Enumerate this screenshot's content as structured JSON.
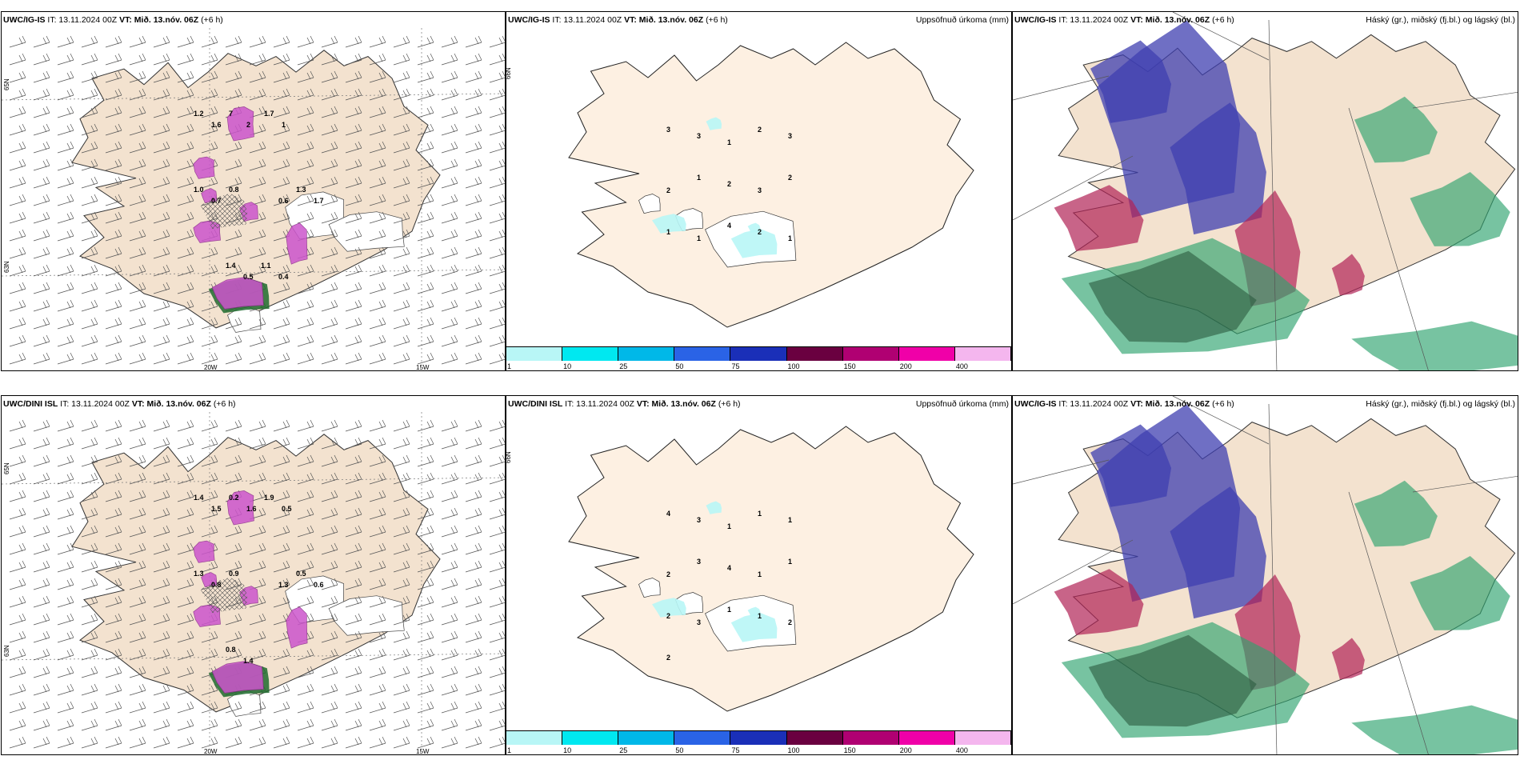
{
  "rows": [
    {
      "model_left": "UWC/IG-IS",
      "model_mid": "UWC/IG-IS",
      "model_right": "UWC/IG-IS",
      "it": "IT: 13.11.2024 00Z",
      "vt": "VT: Mið. 13.nóv. 06Z",
      "lead": "(+6 h)",
      "precip_labels": [
        "3",
        "3",
        "1",
        "2",
        "3",
        "2",
        "1",
        "2",
        "3",
        "2",
        "1",
        "1",
        "4",
        "2",
        "1"
      ],
      "wind_labels": [
        "1.2",
        "1.6",
        "7",
        "2",
        "1.7",
        "1",
        "1.0",
        "0.7",
        "0.8",
        "0.6",
        "1.3",
        "1.7",
        "1.4",
        "0.5",
        "1.1",
        "0.4"
      ]
    },
    {
      "model_left": "UWC/DINI ISL",
      "model_mid": "UWC/DINI ISL",
      "model_right": "UWC/IG-IS",
      "it": "IT: 13.11.2024 00Z",
      "vt": "VT: Mið. 13.nóv. 06Z",
      "lead": "(+6 h)",
      "precip_labels": [
        "4",
        "3",
        "1",
        "1",
        "1",
        "2",
        "3",
        "4",
        "1",
        "1",
        "2",
        "3",
        "1",
        "1",
        "2",
        "2"
      ],
      "wind_labels": [
        "1.4",
        "1.5",
        "0.2",
        "1.6",
        "1.9",
        "0.5",
        "1.3",
        "0.8",
        "0.9",
        "1.3",
        "0.5",
        "0.6",
        "0.8",
        "1.4"
      ]
    }
  ],
  "mid_title": "Uppsöfnuð úrkoma (mm)",
  "right_title": "Háský (gr.), miðský (fj.bl.) og lágský (bl.)",
  "colorbar": {
    "ticks": [
      "1",
      "10",
      "25",
      "50",
      "75",
      "100",
      "150",
      "200",
      "400"
    ],
    "colors": [
      "#b8f6f6",
      "#00e8f0",
      "#00b8e8",
      "#2a63e6",
      "#1a2fb8",
      "#6a0040",
      "#b00072",
      "#f000a8",
      "#f4b6ee"
    ]
  },
  "axis": {
    "lon_a": "20W",
    "lon_b": "15W",
    "lat_a": "65N",
    "lat_b": "63N",
    "lat_c": "66N"
  },
  "colors": {
    "land": "#f3e2cf",
    "land_mid": "#fdf0e2",
    "snow": "#ffffff",
    "purple": "#cc55cc",
    "green_dark": "#1f6b2e",
    "high_cloud": "#3f3fb0",
    "mid_cloud": "#2ea36e",
    "low_cloud": "#b02255"
  }
}
